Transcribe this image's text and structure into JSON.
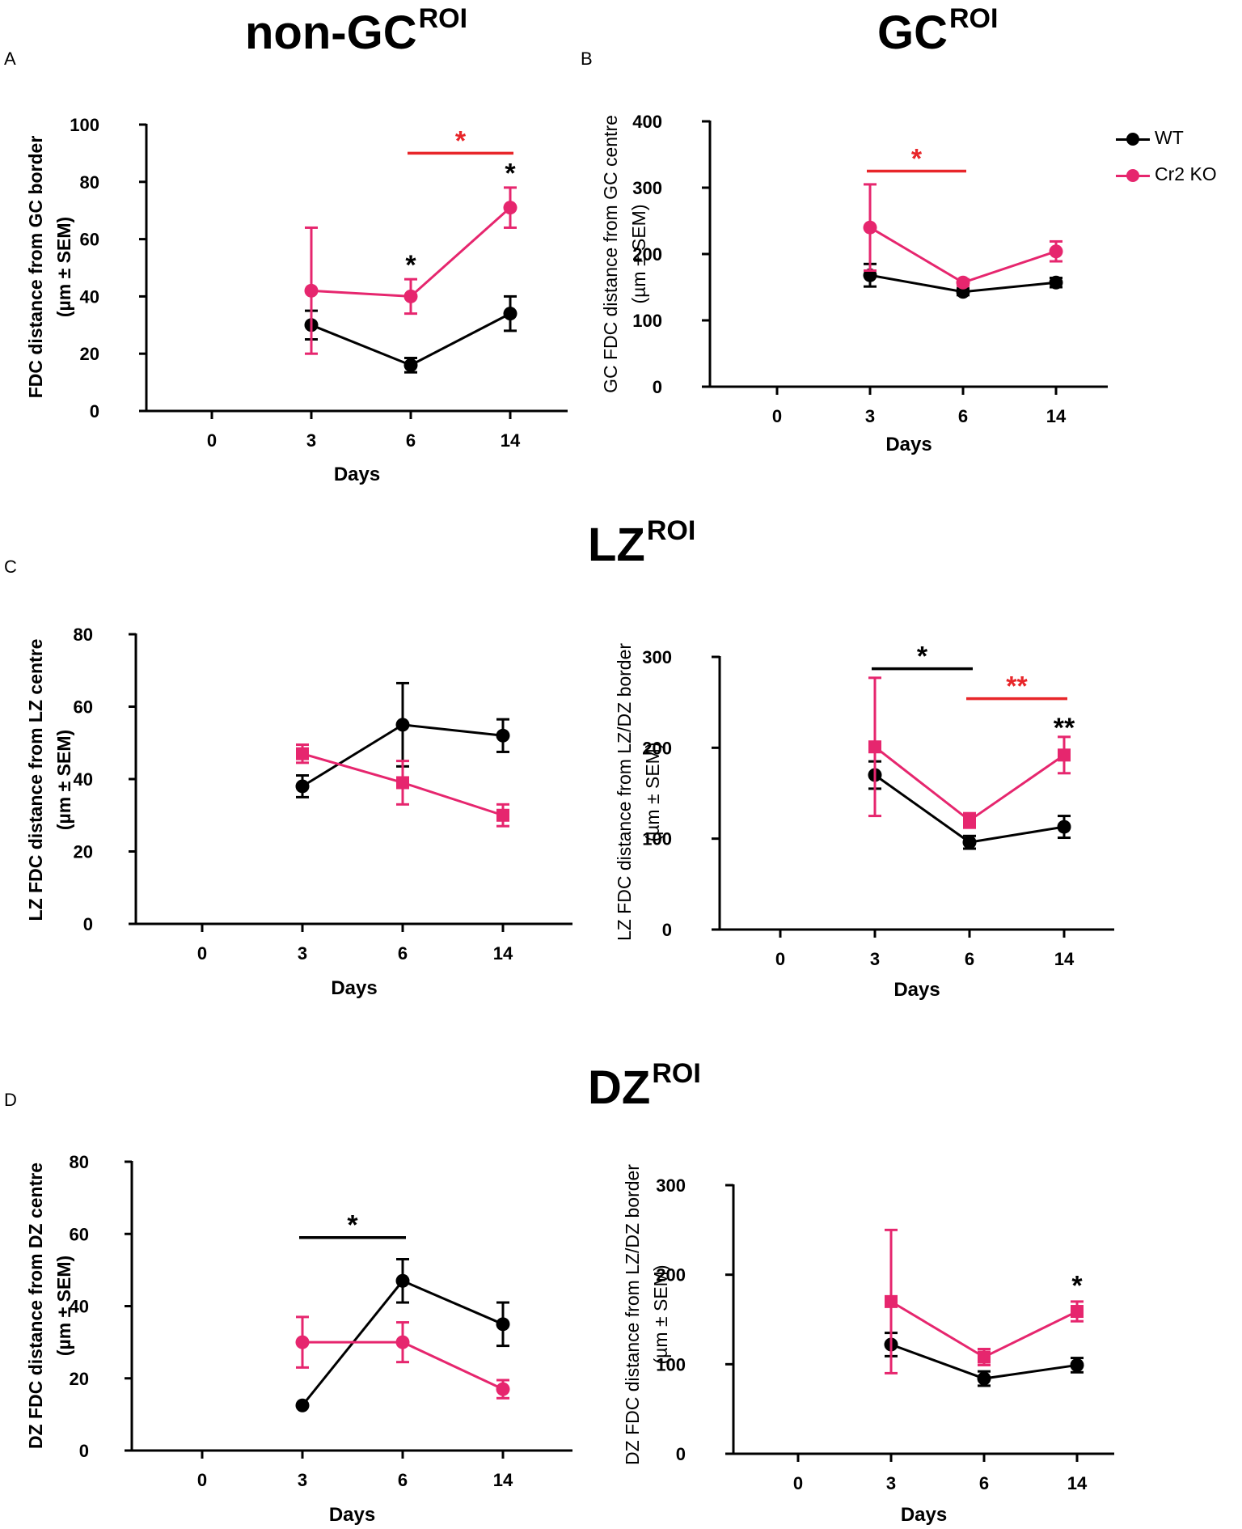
{
  "titles": {
    "non_gc": {
      "main": "non-GC",
      "sup": "ROI"
    },
    "gc": {
      "main": "GC",
      "sup": "ROI"
    },
    "lz": {
      "main": "LZ",
      "sup": "ROI"
    },
    "dz": {
      "main": "DZ",
      "sup": "ROI"
    }
  },
  "panel_letters": {
    "a": "A",
    "b": "B",
    "c": "C",
    "d": "D"
  },
  "legend": {
    "wt": {
      "label": "WT",
      "color": "#000000",
      "marker": "circle"
    },
    "ko": {
      "label": "Cr2 KO",
      "color": "#e6266e",
      "marker": "circle"
    }
  },
  "colors": {
    "wt": "#000000",
    "ko": "#e6266e",
    "sig_red": "#e8262a",
    "sig_black": "#000000"
  },
  "chart_data": [
    {
      "id": "A",
      "type": "line",
      "categories": [
        "0",
        "3",
        "6",
        "14"
      ],
      "xlabel": "Days",
      "ylabel": [
        "FDC distance from GC border",
        "(µm ± SEM)"
      ],
      "ylabel_bold": true,
      "ylim": [
        0,
        100
      ],
      "yticks": [
        0,
        20,
        40,
        60,
        80,
        100
      ],
      "series": [
        {
          "name": "WT",
          "color": "#000000",
          "marker": "circle",
          "values": [
            null,
            30,
            16,
            34
          ],
          "errors": [
            null,
            5,
            2.5,
            6
          ]
        },
        {
          "name": "Cr2 KO",
          "color": "#e6266e",
          "marker": "circle",
          "values": [
            null,
            42,
            40,
            71
          ],
          "errors": [
            null,
            22,
            6,
            7
          ]
        }
      ],
      "brackets": [
        {
          "from": "6",
          "to": "14",
          "level": 90,
          "color": "#e8262a",
          "label": "*"
        }
      ],
      "point_labels": [
        {
          "at": "6",
          "level": 50,
          "label": "*"
        },
        {
          "at": "14",
          "level": 82,
          "label": "*"
        }
      ]
    },
    {
      "id": "B",
      "type": "line",
      "categories": [
        "0",
        "3",
        "6",
        "14"
      ],
      "xlabel": "Days",
      "ylabel": [
        "GC FDC distance from GC centre",
        "(µm ± SEM)"
      ],
      "ylabel_bold": false,
      "ylim": [
        0,
        400
      ],
      "yticks": [
        0,
        100,
        200,
        300,
        400
      ],
      "series": [
        {
          "name": "WT",
          "color": "#000000",
          "marker": "circle",
          "values": [
            null,
            168,
            143,
            157
          ],
          "errors": [
            null,
            17,
            5,
            7
          ]
        },
        {
          "name": "Cr2 KO",
          "color": "#e6266e",
          "marker": "circle",
          "values": [
            null,
            240,
            157,
            204
          ],
          "errors": [
            null,
            65,
            5,
            15
          ]
        }
      ],
      "brackets": [
        {
          "from": "3",
          "to": "6",
          "level": 325,
          "color": "#e8262a",
          "label": "*"
        }
      ],
      "point_labels": []
    },
    {
      "id": "C-left",
      "type": "line",
      "categories": [
        "0",
        "3",
        "6",
        "14"
      ],
      "xlabel": "Days",
      "ylabel": [
        "LZ FDC distance from LZ centre",
        "(µm ± SEM)"
      ],
      "ylabel_bold": true,
      "ylim": [
        0,
        80
      ],
      "yticks": [
        0,
        20,
        40,
        60,
        80
      ],
      "series": [
        {
          "name": "WT",
          "color": "#000000",
          "marker": "circle",
          "values": [
            null,
            38,
            55,
            52
          ],
          "errors": [
            null,
            3,
            11.5,
            4.5
          ]
        },
        {
          "name": "Cr2 KO",
          "color": "#e6266e",
          "marker": "square",
          "values": [
            null,
            47,
            39,
            30
          ],
          "errors": [
            null,
            2.5,
            6,
            3
          ]
        }
      ],
      "brackets": [],
      "point_labels": []
    },
    {
      "id": "C-right",
      "type": "line",
      "categories": [
        "0",
        "3",
        "6",
        "14"
      ],
      "xlabel": "Days",
      "ylabel": [
        "LZ FDC distance from LZ/DZ border",
        "(µm ± SEM)"
      ],
      "ylabel_bold": false,
      "ylim": [
        0,
        300
      ],
      "yticks": [
        0,
        100,
        200,
        300
      ],
      "series": [
        {
          "name": "WT",
          "color": "#000000",
          "marker": "circle",
          "values": [
            null,
            170,
            96,
            113
          ],
          "errors": [
            null,
            15,
            7,
            12
          ]
        },
        {
          "name": "Cr2 KO",
          "color": "#e6266e",
          "marker": "square",
          "values": [
            null,
            201,
            120,
            192
          ],
          "errors": [
            null,
            76,
            8,
            20
          ]
        }
      ],
      "brackets": [
        {
          "from": "3",
          "to": "6",
          "level": 287,
          "color": "#000000",
          "label": "*"
        },
        {
          "from": "6",
          "to": "14",
          "level": 254,
          "color": "#e8262a",
          "label": "**"
        }
      ],
      "point_labels": [
        {
          "at": "14",
          "level": 219,
          "label": "**"
        }
      ]
    },
    {
      "id": "D-left",
      "type": "line",
      "categories": [
        "0",
        "3",
        "6",
        "14"
      ],
      "xlabel": "Days",
      "ylabel": [
        "DZ FDC distance from DZ centre",
        "(µm ± SEM)"
      ],
      "ylabel_bold": true,
      "ylim": [
        0,
        80
      ],
      "yticks": [
        0,
        20,
        40,
        60,
        80
      ],
      "series": [
        {
          "name": "WT",
          "color": "#000000",
          "marker": "circle",
          "values": [
            null,
            12.5,
            47,
            35
          ],
          "errors": [
            null,
            0,
            6,
            6
          ]
        },
        {
          "name": "Cr2 KO",
          "color": "#e6266e",
          "marker": "circle",
          "values": [
            null,
            30,
            30,
            17
          ],
          "errors": [
            null,
            7,
            5.5,
            2.5
          ]
        }
      ],
      "brackets": [
        {
          "from": "3",
          "to": "6",
          "level": 59,
          "color": "#000000",
          "label": "*"
        }
      ],
      "point_labels": []
    },
    {
      "id": "D-right",
      "type": "line",
      "categories": [
        "0",
        "3",
        "6",
        "14"
      ],
      "xlabel": "Days",
      "ylabel": [
        "DZ FDC distance from LZ/DZ border",
        "(µm ± SEM)"
      ],
      "ylabel_bold": false,
      "ylim": [
        0,
        300
      ],
      "yticks": [
        0,
        100,
        200,
        300
      ],
      "series": [
        {
          "name": "WT",
          "color": "#000000",
          "marker": "circle",
          "values": [
            null,
            122,
            84,
            99
          ],
          "errors": [
            null,
            13,
            8,
            8
          ]
        },
        {
          "name": "Cr2 KO",
          "color": "#e6266e",
          "marker": "square",
          "values": [
            null,
            170,
            108,
            159
          ],
          "errors": [
            null,
            80,
            9,
            11
          ]
        }
      ],
      "brackets": [],
      "point_labels": [
        {
          "at": "14",
          "level": 185,
          "label": "*"
        }
      ]
    }
  ]
}
